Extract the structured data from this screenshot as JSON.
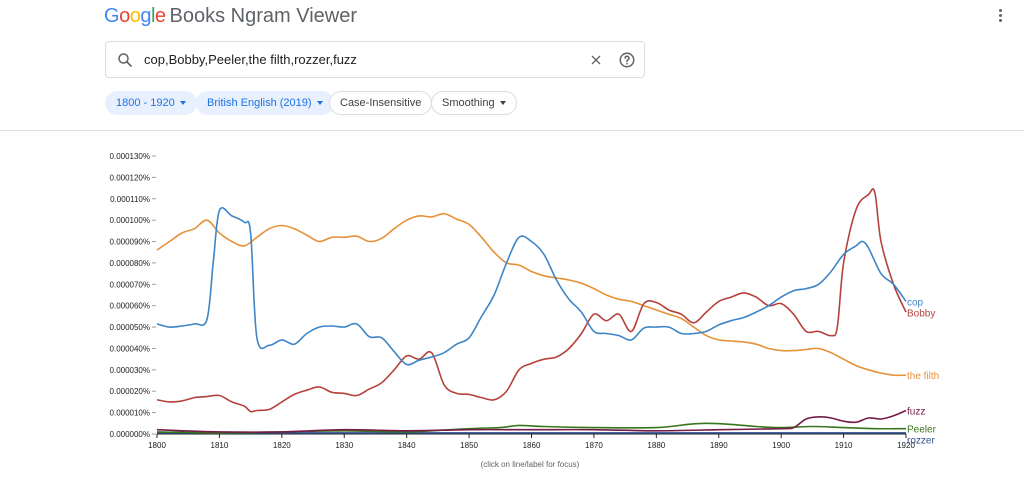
{
  "header": {
    "logo_letters": [
      {
        "ch": "G",
        "color": "#4285F4"
      },
      {
        "ch": "o",
        "color": "#EA4335"
      },
      {
        "ch": "o",
        "color": "#FBBC05"
      },
      {
        "ch": "g",
        "color": "#4285F4"
      },
      {
        "ch": "l",
        "color": "#34A853"
      },
      {
        "ch": "e",
        "color": "#EA4335"
      }
    ],
    "app_name": "Books Ngram Viewer",
    "menu_icon": "more-vert-icon"
  },
  "search": {
    "value": "cop,Bobby,Peeler,the filth,rozzer,fuzz",
    "search_icon": "search-icon",
    "clear_icon": "close-icon",
    "help_icon": "help-icon"
  },
  "filters": {
    "year_range": "1800 - 1920",
    "corpus": "British English (2019)",
    "case": "Case-Insensitive",
    "smoothing": "Smoothing"
  },
  "footer_note": "(click on line/label for focus)",
  "chart_data": {
    "type": "line",
    "title": "",
    "xlabel": "",
    "ylabel": "",
    "xlim": [
      1800,
      1920
    ],
    "ylim": [
      0,
      0.00013
    ],
    "x_ticks": [
      1800,
      1810,
      1820,
      1830,
      1840,
      1850,
      1860,
      1870,
      1880,
      1890,
      1900,
      1910,
      1920
    ],
    "y_ticks": [
      {
        "v": 0,
        "label": "0.000000%"
      },
      {
        "v": 1e-05,
        "label": "0.000010%"
      },
      {
        "v": 2e-05,
        "label": "0.000020%"
      },
      {
        "v": 3e-05,
        "label": "0.000030%"
      },
      {
        "v": 4e-05,
        "label": "0.000040%"
      },
      {
        "v": 5e-05,
        "label": "0.000050%"
      },
      {
        "v": 6e-05,
        "label": "0.000060%"
      },
      {
        "v": 7e-05,
        "label": "0.000070%"
      },
      {
        "v": 8e-05,
        "label": "0.000080%"
      },
      {
        "v": 9e-05,
        "label": "0.000090%"
      },
      {
        "v": 0.0001,
        "label": "0.000100%"
      },
      {
        "v": 0.00011,
        "label": "0.000110%"
      },
      {
        "v": 0.00012,
        "label": "0.000120%"
      },
      {
        "v": 0.00013,
        "label": "0.000130%"
      }
    ],
    "grid": false,
    "legend": "labels at line ends",
    "series": [
      {
        "name": "cop",
        "color": "#3d85c6",
        "label_color": "#3d85c6",
        "points": [
          [
            1800,
            5.15e-05
          ],
          [
            1802,
            5e-05
          ],
          [
            1804,
            5.05e-05
          ],
          [
            1806,
            5.15e-05
          ],
          [
            1808,
            5.35e-05
          ],
          [
            1809,
            8e-05
          ],
          [
            1810,
            0.0001045
          ],
          [
            1812,
            0.000102
          ],
          [
            1814,
            9.9e-05
          ],
          [
            1815,
            9.4e-05
          ],
          [
            1816,
            4.5e-05
          ],
          [
            1818,
            4.15e-05
          ],
          [
            1820,
            4.4e-05
          ],
          [
            1822,
            4.2e-05
          ],
          [
            1824,
            4.7e-05
          ],
          [
            1826,
            5e-05
          ],
          [
            1828,
            5.05e-05
          ],
          [
            1830,
            5e-05
          ],
          [
            1832,
            5.15e-05
          ],
          [
            1834,
            4.55e-05
          ],
          [
            1836,
            4.5e-05
          ],
          [
            1838,
            3.85e-05
          ],
          [
            1840,
            3.25e-05
          ],
          [
            1842,
            3.45e-05
          ],
          [
            1844,
            3.6e-05
          ],
          [
            1846,
            3.8e-05
          ],
          [
            1848,
            4.2e-05
          ],
          [
            1850,
            4.5e-05
          ],
          [
            1852,
            5.5e-05
          ],
          [
            1854,
            6.5e-05
          ],
          [
            1856,
            8e-05
          ],
          [
            1858,
            9.2e-05
          ],
          [
            1860,
            9e-05
          ],
          [
            1862,
            8.4e-05
          ],
          [
            1864,
            7.2e-05
          ],
          [
            1866,
            6.3e-05
          ],
          [
            1868,
            5.7e-05
          ],
          [
            1870,
            4.8e-05
          ],
          [
            1872,
            4.7e-05
          ],
          [
            1874,
            4.6e-05
          ],
          [
            1876,
            4.4e-05
          ],
          [
            1878,
            4.95e-05
          ],
          [
            1880,
            5e-05
          ],
          [
            1882,
            5e-05
          ],
          [
            1884,
            4.7e-05
          ],
          [
            1886,
            4.7e-05
          ],
          [
            1888,
            4.8e-05
          ],
          [
            1890,
            5.1e-05
          ],
          [
            1892,
            5.3e-05
          ],
          [
            1894,
            5.45e-05
          ],
          [
            1896,
            5.7e-05
          ],
          [
            1898,
            6e-05
          ],
          [
            1900,
            6.4e-05
          ],
          [
            1902,
            6.7e-05
          ],
          [
            1904,
            6.8e-05
          ],
          [
            1906,
            7e-05
          ],
          [
            1908,
            7.6e-05
          ],
          [
            1910,
            8.4e-05
          ],
          [
            1912,
            8.8e-05
          ],
          [
            1913,
            9e-05
          ],
          [
            1914,
            8.7e-05
          ],
          [
            1916,
            7.5e-05
          ],
          [
            1918,
            7e-05
          ],
          [
            1920,
            6.2e-05
          ]
        ]
      },
      {
        "name": "Bobby",
        "color": "#b5413b",
        "label_color": "#b5413b",
        "points": [
          [
            1800,
            1.6e-05
          ],
          [
            1802,
            1.5e-05
          ],
          [
            1804,
            1.55e-05
          ],
          [
            1806,
            1.7e-05
          ],
          [
            1808,
            1.75e-05
          ],
          [
            1810,
            1.8e-05
          ],
          [
            1812,
            1.5e-05
          ],
          [
            1814,
            1.3e-05
          ],
          [
            1815,
            1.05e-05
          ],
          [
            1816,
            1.1e-05
          ],
          [
            1818,
            1.15e-05
          ],
          [
            1820,
            1.5e-05
          ],
          [
            1822,
            1.85e-05
          ],
          [
            1824,
            2.05e-05
          ],
          [
            1826,
            2.2e-05
          ],
          [
            1828,
            1.95e-05
          ],
          [
            1830,
            1.9e-05
          ],
          [
            1832,
            1.8e-05
          ],
          [
            1834,
            2.1e-05
          ],
          [
            1836,
            2.4e-05
          ],
          [
            1838,
            3e-05
          ],
          [
            1840,
            3.65e-05
          ],
          [
            1842,
            3.5e-05
          ],
          [
            1844,
            3.8e-05
          ],
          [
            1846,
            2.3e-05
          ],
          [
            1848,
            1.9e-05
          ],
          [
            1850,
            1.85e-05
          ],
          [
            1852,
            1.7e-05
          ],
          [
            1854,
            1.6e-05
          ],
          [
            1856,
            2e-05
          ],
          [
            1858,
            3e-05
          ],
          [
            1860,
            3.3e-05
          ],
          [
            1862,
            3.5e-05
          ],
          [
            1864,
            3.6e-05
          ],
          [
            1866,
            4e-05
          ],
          [
            1868,
            4.7e-05
          ],
          [
            1870,
            5.6e-05
          ],
          [
            1872,
            5.3e-05
          ],
          [
            1874,
            5.6e-05
          ],
          [
            1876,
            4.8e-05
          ],
          [
            1878,
            6.1e-05
          ],
          [
            1880,
            6.15e-05
          ],
          [
            1882,
            5.8e-05
          ],
          [
            1884,
            5.6e-05
          ],
          [
            1886,
            5.2e-05
          ],
          [
            1888,
            5.7e-05
          ],
          [
            1890,
            6.2e-05
          ],
          [
            1892,
            6.4e-05
          ],
          [
            1894,
            6.6e-05
          ],
          [
            1896,
            6.4e-05
          ],
          [
            1898,
            6e-05
          ],
          [
            1900,
            6.1e-05
          ],
          [
            1902,
            5.6e-05
          ],
          [
            1904,
            4.8e-05
          ],
          [
            1906,
            4.8e-05
          ],
          [
            1908,
            4.6e-05
          ],
          [
            1909,
            5e-05
          ],
          [
            1910,
            8e-05
          ],
          [
            1912,
            0.000105
          ],
          [
            1914,
            0.000112
          ],
          [
            1915,
            0.000113
          ],
          [
            1916,
            9e-05
          ],
          [
            1918,
            7e-05
          ],
          [
            1920,
            5.7e-05
          ]
        ]
      },
      {
        "name": "the filth",
        "color": "#e69138",
        "label_color": "#e69138",
        "points": [
          [
            1800,
            8.6e-05
          ],
          [
            1802,
            9e-05
          ],
          [
            1804,
            9.4e-05
          ],
          [
            1806,
            9.6e-05
          ],
          [
            1808,
            0.0001
          ],
          [
            1810,
            9.4e-05
          ],
          [
            1812,
            9e-05
          ],
          [
            1814,
            8.8e-05
          ],
          [
            1816,
            9.2e-05
          ],
          [
            1818,
            9.6e-05
          ],
          [
            1820,
            9.75e-05
          ],
          [
            1822,
            9.6e-05
          ],
          [
            1824,
            9.3e-05
          ],
          [
            1826,
            9e-05
          ],
          [
            1828,
            9.2e-05
          ],
          [
            1830,
            9.2e-05
          ],
          [
            1832,
            9.25e-05
          ],
          [
            1834,
            9e-05
          ],
          [
            1836,
            9.15e-05
          ],
          [
            1838,
            9.6e-05
          ],
          [
            1840,
            0.0001
          ],
          [
            1842,
            0.000102
          ],
          [
            1844,
            0.0001015
          ],
          [
            1846,
            0.000103
          ],
          [
            1848,
            0.0001005
          ],
          [
            1850,
            9.8e-05
          ],
          [
            1852,
            9.2e-05
          ],
          [
            1854,
            8.5e-05
          ],
          [
            1856,
            8e-05
          ],
          [
            1858,
            7.9e-05
          ],
          [
            1860,
            7.6e-05
          ],
          [
            1862,
            7.4e-05
          ],
          [
            1864,
            7.3e-05
          ],
          [
            1866,
            7.2e-05
          ],
          [
            1868,
            7.05e-05
          ],
          [
            1870,
            6.8e-05
          ],
          [
            1872,
            6.5e-05
          ],
          [
            1874,
            6.3e-05
          ],
          [
            1876,
            6.2e-05
          ],
          [
            1878,
            6e-05
          ],
          [
            1880,
            5.8e-05
          ],
          [
            1882,
            5.6e-05
          ],
          [
            1884,
            5.4e-05
          ],
          [
            1886,
            5e-05
          ],
          [
            1888,
            4.6e-05
          ],
          [
            1890,
            4.4e-05
          ],
          [
            1892,
            4.35e-05
          ],
          [
            1894,
            4.3e-05
          ],
          [
            1896,
            4.2e-05
          ],
          [
            1898,
            4e-05
          ],
          [
            1900,
            3.9e-05
          ],
          [
            1902,
            3.9e-05
          ],
          [
            1904,
            3.95e-05
          ],
          [
            1906,
            4e-05
          ],
          [
            1908,
            3.8e-05
          ],
          [
            1910,
            3.5e-05
          ],
          [
            1912,
            3.2e-05
          ],
          [
            1914,
            3e-05
          ],
          [
            1916,
            2.85e-05
          ],
          [
            1918,
            2.75e-05
          ],
          [
            1920,
            2.75e-05
          ]
        ]
      },
      {
        "name": "fuzz",
        "color": "#741b47",
        "label_color": "#741b47",
        "points": [
          [
            1800,
            2e-06
          ],
          [
            1810,
            1e-06
          ],
          [
            1820,
            1e-06
          ],
          [
            1830,
            2e-06
          ],
          [
            1840,
            1.5e-06
          ],
          [
            1850,
            2e-06
          ],
          [
            1860,
            2e-06
          ],
          [
            1870,
            2e-06
          ],
          [
            1880,
            1.5e-06
          ],
          [
            1890,
            2e-06
          ],
          [
            1900,
            2.5e-06
          ],
          [
            1902,
            3e-06
          ],
          [
            1904,
            7e-06
          ],
          [
            1906,
            8e-06
          ],
          [
            1908,
            7.5e-06
          ],
          [
            1910,
            6e-06
          ],
          [
            1912,
            5.5e-06
          ],
          [
            1914,
            7.5e-06
          ],
          [
            1916,
            7e-06
          ],
          [
            1918,
            8.5e-06
          ],
          [
            1920,
            1.1e-05
          ]
        ]
      },
      {
        "name": "Peeler",
        "color": "#38761d",
        "label_color": "#38761d",
        "points": [
          [
            1800,
            1e-06
          ],
          [
            1810,
            5e-07
          ],
          [
            1820,
            1e-06
          ],
          [
            1830,
            1.5e-06
          ],
          [
            1840,
            1e-06
          ],
          [
            1850,
            2.5e-06
          ],
          [
            1855,
            3e-06
          ],
          [
            1858,
            4e-06
          ],
          [
            1862,
            3.5e-06
          ],
          [
            1870,
            3e-06
          ],
          [
            1880,
            3e-06
          ],
          [
            1885,
            4.5e-06
          ],
          [
            1888,
            5e-06
          ],
          [
            1892,
            4.5e-06
          ],
          [
            1896,
            3.5e-06
          ],
          [
            1900,
            3e-06
          ],
          [
            1905,
            3.5e-06
          ],
          [
            1910,
            3e-06
          ],
          [
            1915,
            2.5e-06
          ],
          [
            1920,
            2.5e-06
          ]
        ]
      },
      {
        "name": "rozzer",
        "color": "#2f4f8a",
        "label_color": "#2f4f8a",
        "points": [
          [
            1800,
            5e-07
          ],
          [
            1830,
            5e-07
          ],
          [
            1860,
            5e-07
          ],
          [
            1890,
            5e-07
          ],
          [
            1920,
            5e-07
          ]
        ]
      }
    ]
  }
}
